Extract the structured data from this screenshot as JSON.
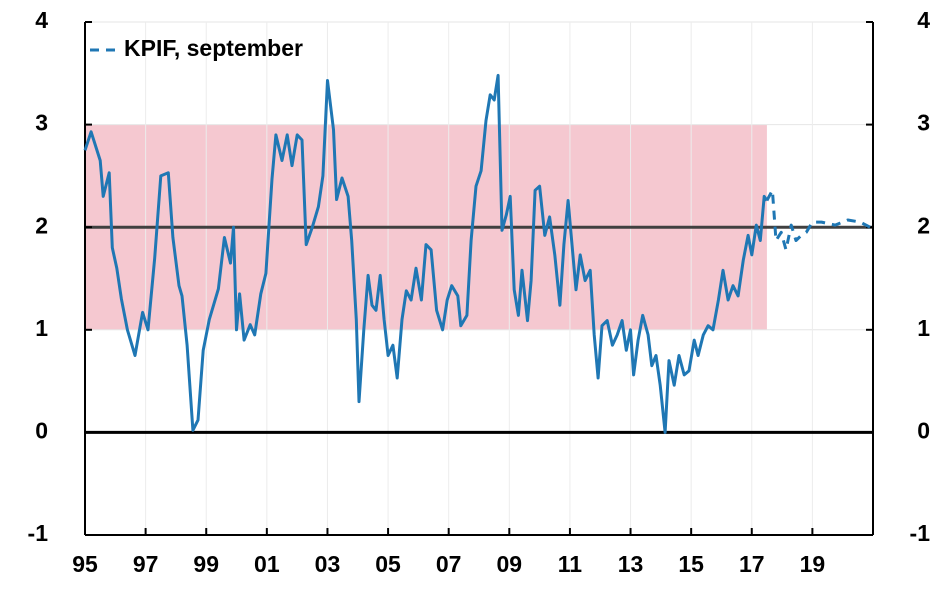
{
  "chart_data": {
    "type": "line",
    "xlim": [
      1995,
      2021
    ],
    "ylim": [
      -1,
      4
    ],
    "xticks": [
      {
        "value": 1995,
        "label": "95"
      },
      {
        "value": 1997,
        "label": "97"
      },
      {
        "value": 1999,
        "label": "99"
      },
      {
        "value": 2001,
        "label": "01"
      },
      {
        "value": 2003,
        "label": "03"
      },
      {
        "value": 2005,
        "label": "05"
      },
      {
        "value": 2007,
        "label": "07"
      },
      {
        "value": 2009,
        "label": "09"
      },
      {
        "value": 2011,
        "label": "11"
      },
      {
        "value": 2013,
        "label": "13"
      },
      {
        "value": 2015,
        "label": "15"
      },
      {
        "value": 2017,
        "label": "17"
      },
      {
        "value": 2019,
        "label": "19"
      }
    ],
    "yticks": [
      -1,
      0,
      1,
      2,
      3,
      4
    ],
    "y2lim": [
      -1,
      4
    ],
    "y2ticks": [
      -1,
      0,
      1,
      2,
      3,
      4
    ],
    "grid": true,
    "legend": "upper left",
    "bands": [
      {
        "x": [
          1995,
          2017.5
        ],
        "y": [
          1,
          3
        ],
        "color": "#f5c8d0"
      }
    ],
    "hlines": [
      {
        "y": 2,
        "color": "#404040"
      },
      {
        "y": 0,
        "color": "#000000"
      }
    ],
    "series": [
      {
        "color": "#1f77b4",
        "dash": false,
        "x": [
          1995.0,
          1995.2,
          1995.5,
          1995.6,
          1995.8,
          1995.9,
          1996.05,
          1996.2,
          1996.4,
          1996.65,
          1996.9,
          1997.08,
          1997.3,
          1997.5,
          1997.75,
          1997.9,
          1998.1,
          1998.2,
          1998.37,
          1998.56,
          1998.73,
          1998.9,
          1999.1,
          1999.4,
          1999.6,
          1999.8,
          1999.9,
          2000.0,
          2000.1,
          2000.25,
          2000.45,
          2000.6,
          2000.8,
          2000.97,
          2001.17,
          2001.3,
          2001.5,
          2001.67,
          2001.83,
          2002.0,
          2002.16,
          2002.3,
          2002.5,
          2002.7,
          2002.85,
          2003.0,
          2003.2,
          2003.3,
          2003.48,
          2003.68,
          2003.8,
          2003.95,
          2004.04,
          2004.2,
          2004.34,
          2004.47,
          2004.6,
          2004.74,
          2004.87,
          2005.0,
          2005.16,
          2005.3,
          2005.46,
          2005.6,
          2005.76,
          2005.92,
          2006.1,
          2006.25,
          2006.42,
          2006.6,
          2006.8,
          2006.95,
          2007.1,
          2007.3,
          2007.4,
          2007.6,
          2007.74,
          2007.9,
          2008.07,
          2008.23,
          2008.37,
          2008.5,
          2008.63,
          2008.76,
          2008.9,
          2009.03,
          2009.16,
          2009.3,
          2009.42,
          2009.6,
          2009.72,
          2009.85,
          2010.0,
          2010.17,
          2010.33,
          2010.5,
          2010.67,
          2010.8,
          2010.94,
          2011.07,
          2011.2,
          2011.34,
          2011.5,
          2011.67,
          2011.8,
          2011.93,
          2012.06,
          2012.23,
          2012.4,
          2012.56,
          2012.72,
          2012.86,
          2013.0,
          2013.1,
          2013.25,
          2013.4,
          2013.58,
          2013.7,
          2013.84,
          2013.98,
          2014.14,
          2014.27,
          2014.44,
          2014.6,
          2014.77,
          2014.93,
          2015.1,
          2015.23,
          2015.4,
          2015.56,
          2015.72,
          2015.9,
          2016.05,
          2016.22,
          2016.38,
          2016.55,
          2016.72,
          2016.88,
          2017.0,
          2017.15,
          2017.28,
          2017.41,
          2017.5
        ],
        "values": [
          2.75,
          2.93,
          2.65,
          2.3,
          2.53,
          1.8,
          1.6,
          1.3,
          1.0,
          0.75,
          1.17,
          1.0,
          1.7,
          2.5,
          2.53,
          1.9,
          1.43,
          1.33,
          0.85,
          0.02,
          0.12,
          0.8,
          1.1,
          1.4,
          1.9,
          1.65,
          2.0,
          1.0,
          1.35,
          0.9,
          1.05,
          0.95,
          1.35,
          1.55,
          2.47,
          2.9,
          2.65,
          2.9,
          2.6,
          2.9,
          2.85,
          1.83,
          2.0,
          2.2,
          2.5,
          3.43,
          2.95,
          2.27,
          2.48,
          2.3,
          1.87,
          1.1,
          0.3,
          1.0,
          1.53,
          1.24,
          1.19,
          1.53,
          1.1,
          0.75,
          0.85,
          0.53,
          1.1,
          1.38,
          1.29,
          1.6,
          1.29,
          1.83,
          1.78,
          1.19,
          1.0,
          1.29,
          1.43,
          1.33,
          1.04,
          1.14,
          1.87,
          2.4,
          2.55,
          3.04,
          3.29,
          3.24,
          3.48,
          1.97,
          2.12,
          2.3,
          1.39,
          1.14,
          1.58,
          1.09,
          1.48,
          2.36,
          2.4,
          1.92,
          2.1,
          1.73,
          1.24,
          1.83,
          2.26,
          1.83,
          1.39,
          1.73,
          1.48,
          1.58,
          0.95,
          0.53,
          1.04,
          1.09,
          0.85,
          0.95,
          1.09,
          0.8,
          1.0,
          0.56,
          0.9,
          1.14,
          0.95,
          0.65,
          0.75,
          0.46,
          0.0,
          0.7,
          0.46,
          0.75,
          0.56,
          0.6,
          0.9,
          0.75,
          0.95,
          1.04,
          1.0,
          1.29,
          1.58,
          1.29,
          1.43,
          1.33,
          1.68,
          1.92,
          1.73,
          2.02,
          1.87,
          2.3,
          2.26
        ]
      },
      {
        "name": "KPIF, september",
        "color": "#1f77b4",
        "dash": true,
        "x": [
          2017.5,
          2017.68,
          2017.8,
          2017.97,
          2018.13,
          2018.3,
          2018.46,
          2018.63,
          2018.8,
          2019.0,
          2019.3,
          2019.75,
          2020.17,
          2020.58,
          2020.9
        ],
        "values": [
          2.26,
          2.36,
          1.87,
          1.95,
          1.78,
          2.02,
          1.87,
          1.92,
          1.95,
          2.05,
          2.05,
          2.02,
          2.07,
          2.05,
          2.0
        ]
      }
    ]
  }
}
